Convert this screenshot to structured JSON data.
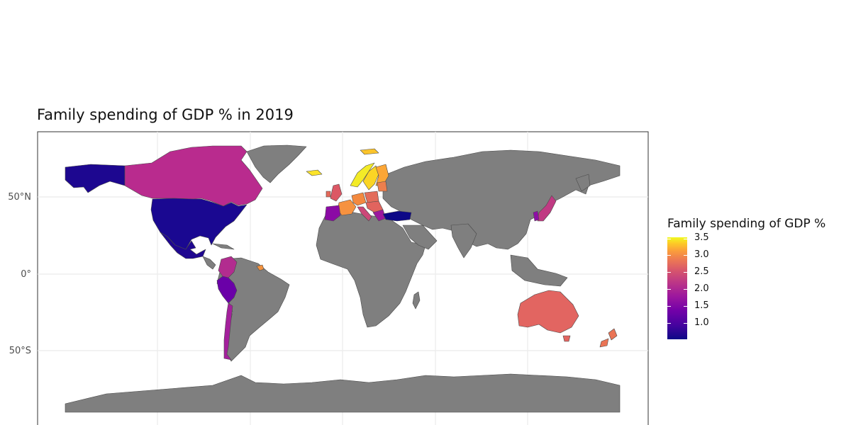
{
  "title": "Family spending of GDP % in 2019",
  "axes": {
    "y_ticks": [
      "50°N",
      "0°",
      "50°S"
    ]
  },
  "legend": {
    "title": "Family spending of GDP %",
    "ticks": [
      "3.5",
      "3.0",
      "2.5",
      "2.0",
      "1.5",
      "1.0"
    ],
    "colormap": "plasma",
    "range": [
      0.6,
      3.5
    ]
  },
  "colors": {
    "no_data": "#7f7f7f",
    "panel_border": "#333333",
    "grid": "#ebebeb"
  },
  "chart_data": {
    "type": "choropleth",
    "title": "Family spending of GDP % in 2019",
    "legend_title": "Family spending of GDP %",
    "colorbar_range": [
      0.6,
      3.5
    ],
    "colorbar_ticks": [
      1.0,
      1.5,
      2.0,
      2.5,
      3.0,
      3.5
    ],
    "y_ticks": [
      "50°N",
      "0°",
      "50°S"
    ],
    "regions": [
      {
        "name": "United States",
        "value": 0.7
      },
      {
        "name": "Canada",
        "value": 1.8
      },
      {
        "name": "Mexico",
        "value": 0.7
      },
      {
        "name": "Colombia",
        "value": 1.8
      },
      {
        "name": "Peru",
        "value": 1.3
      },
      {
        "name": "Chile",
        "value": 1.7
      },
      {
        "name": "Spain",
        "value": 1.4
      },
      {
        "name": "France",
        "value": 2.9
      },
      {
        "name": "United Kingdom",
        "value": 2.2
      },
      {
        "name": "Germany",
        "value": 2.6
      },
      {
        "name": "Sweden",
        "value": 3.5
      },
      {
        "name": "Norway",
        "value": 3.4
      },
      {
        "name": "Finland",
        "value": 3.0
      },
      {
        "name": "Iceland",
        "value": 3.3
      },
      {
        "name": "Italy",
        "value": 2.2
      },
      {
        "name": "Poland",
        "value": 2.5
      },
      {
        "name": "Turkey",
        "value": 0.6
      },
      {
        "name": "Japan",
        "value": 1.8
      },
      {
        "name": "South Korea",
        "value": 1.4
      },
      {
        "name": "Australia",
        "value": 2.2
      },
      {
        "name": "New Zealand",
        "value": 2.5
      }
    ]
  }
}
